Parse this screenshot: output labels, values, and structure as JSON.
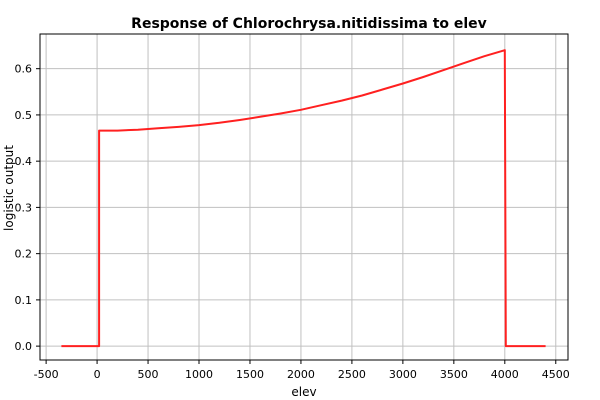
{
  "chart_data": {
    "type": "line",
    "title": "Response of Chlorochrysa.nitidissima to elev",
    "xlabel": "elev",
    "ylabel": "logistic output",
    "xlim": [
      -560,
      4620
    ],
    "ylim": [
      -0.03,
      0.675
    ],
    "grid": true,
    "x_ticks": [
      -500,
      0,
      500,
      1000,
      1500,
      2000,
      2500,
      3000,
      3500,
      4000,
      4500
    ],
    "y_ticks": [
      0.0,
      0.1,
      0.2,
      0.3,
      0.4,
      0.5,
      0.6
    ],
    "y_tick_labels": [
      "0.0",
      "0.1",
      "0.2",
      "0.3",
      "0.4",
      "0.5",
      "0.6"
    ],
    "line_color": "#ff2020",
    "series": [
      {
        "x": [
          -350,
          20,
          20,
          200,
          400,
          600,
          800,
          1000,
          1200,
          1400,
          1600,
          1800,
          2000,
          2200,
          2400,
          2600,
          2800,
          3000,
          3200,
          3400,
          3600,
          3800,
          4000,
          4010,
          4400
        ],
        "y": [
          0.0,
          0.0,
          0.466,
          0.466,
          0.468,
          0.471,
          0.474,
          0.478,
          0.483,
          0.489,
          0.496,
          0.503,
          0.511,
          0.521,
          0.531,
          0.542,
          0.555,
          0.568,
          0.582,
          0.597,
          0.612,
          0.627,
          0.64,
          0.0,
          0.0
        ]
      }
    ]
  }
}
